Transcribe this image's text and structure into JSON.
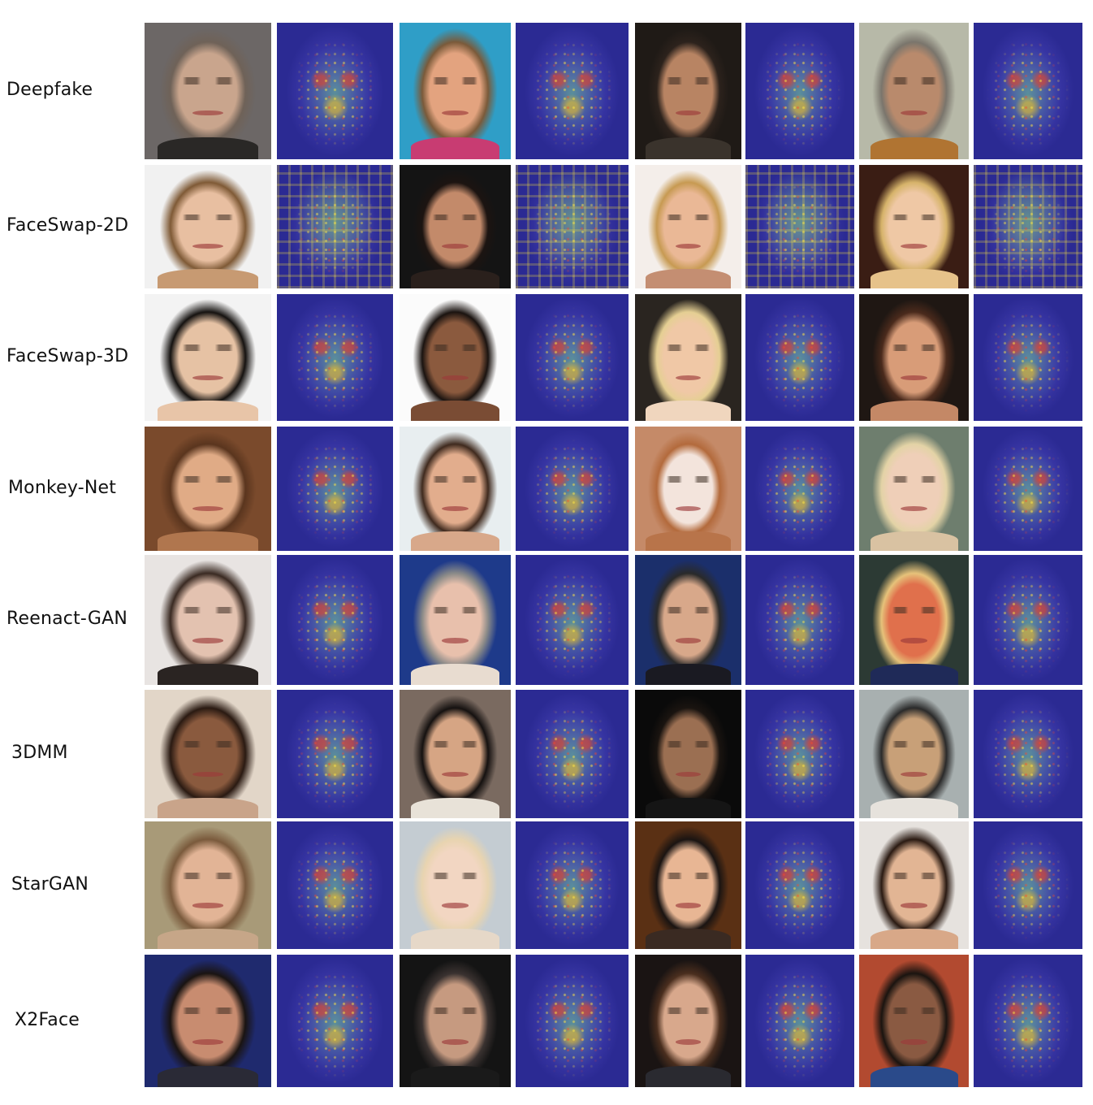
{
  "rows": [
    {
      "label": "Deepfake"
    },
    {
      "label": "FaceSwap-2D"
    },
    {
      "label": "FaceSwap-3D"
    },
    {
      "label": "Monkey-Net"
    },
    {
      "label": "Reenact-GAN"
    },
    {
      "label": "3DMM"
    },
    {
      "label": "StarGAN"
    },
    {
      "label": "X2Face"
    }
  ]
}
